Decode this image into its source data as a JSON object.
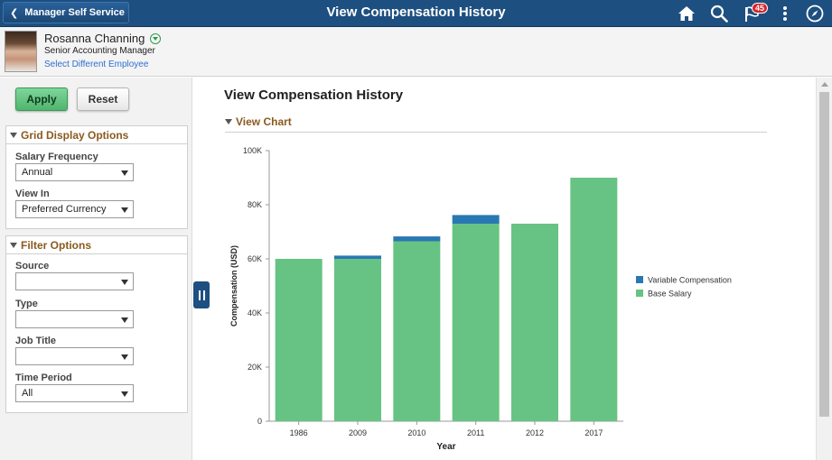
{
  "header": {
    "back_label": "Manager Self Service",
    "title": "View Compensation History",
    "notification_count": "45",
    "icons": [
      "home-icon",
      "search-icon",
      "notifications-flag-icon",
      "actions-menu-icon",
      "navbar-compass-icon"
    ]
  },
  "employee": {
    "name": "Rosanna Channing",
    "job_title": "Senior Accounting Manager",
    "select_link": "Select Different Employee"
  },
  "left_panel": {
    "apply_label": "Apply",
    "reset_label": "Reset",
    "grid_display": {
      "title": "Grid Display Options",
      "salary_frequency_label": "Salary Frequency",
      "salary_frequency_value": "Annual",
      "view_in_label": "View In",
      "view_in_value": "Preferred Currency"
    },
    "filter": {
      "title": "Filter Options",
      "source_label": "Source",
      "source_value": "",
      "type_label": "Type",
      "type_value": "",
      "job_title_label": "Job Title",
      "job_title_value": "",
      "time_period_label": "Time Period",
      "time_period_value": "All"
    }
  },
  "main": {
    "title": "View Compensation History",
    "section_title": "View Chart"
  },
  "chart_data": {
    "type": "bar",
    "stacked": true,
    "categories": [
      "1986",
      "2009",
      "2010",
      "2011",
      "2012",
      "2017"
    ],
    "series": [
      {
        "name": "Base Salary",
        "color": "#67c383",
        "values": [
          60000,
          60000,
          66500,
          73000,
          73000,
          90000
        ]
      },
      {
        "name": "Variable Compensation",
        "color": "#2a78b3",
        "values": [
          0,
          1200,
          1800,
          3200,
          0,
          0
        ]
      }
    ],
    "xlabel": "Year",
    "ylabel": "Compensation (USD)",
    "ylim": [
      0,
      100000
    ],
    "yticks": [
      "0",
      "20K",
      "40K",
      "60K",
      "80K",
      "100K"
    ],
    "legend": [
      "Variable Compensation",
      "Base Salary"
    ],
    "legend_position": "right",
    "grid": false
  }
}
